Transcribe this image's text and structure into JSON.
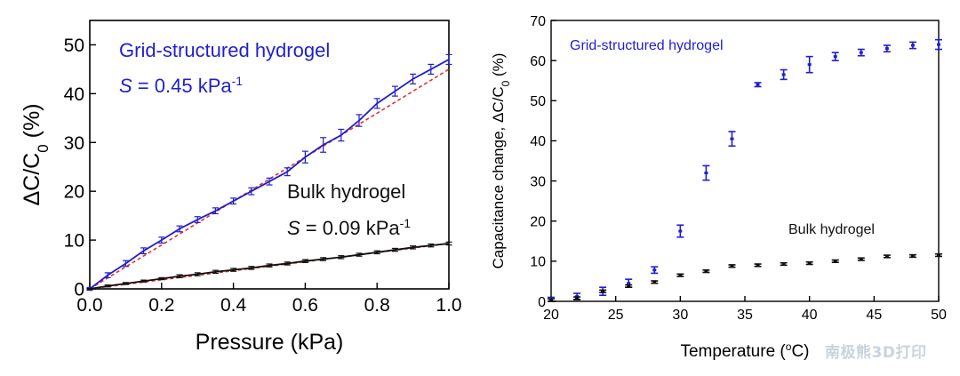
{
  "watermark": "南极熊3D打印",
  "chart_data": [
    {
      "type": "line",
      "xlabel": "Pressure (kPa)",
      "ylabel_parts": {
        "prefix": "ΔC/C",
        "sub": "0",
        "suffix": " (%)"
      },
      "xlim": [
        0.0,
        1.0
      ],
      "ylim": [
        0,
        55
      ],
      "xticks": [
        0.0,
        0.2,
        0.4,
        0.6,
        0.8,
        1.0
      ],
      "xtick_labels": [
        "0.0",
        "0.2",
        "0.4",
        "0.6",
        "0.8",
        "1.0"
      ],
      "yticks": [
        0,
        10,
        20,
        30,
        40,
        50
      ],
      "ytick_labels": [
        "0",
        "10",
        "20",
        "30",
        "40",
        "50"
      ],
      "annotations": [
        {
          "name": "grid-label",
          "text": "Grid-structured hydrogel",
          "color": "#1f1fd0"
        },
        {
          "name": "grid-sensitivity",
          "italic": "S",
          "text": " = 0.45 kPa",
          "sup": "-1",
          "color": "#1f1fd0"
        },
        {
          "name": "bulk-label",
          "text": "Bulk hydrogel",
          "color": "#111111"
        },
        {
          "name": "bulk-sensitivity",
          "italic": "S",
          "text": " = 0.09 kPa",
          "sup": "-1",
          "color": "#111111"
        }
      ],
      "series": [
        {
          "color": "#1f1fd0",
          "x": [
            0.0,
            0.05,
            0.1,
            0.15,
            0.2,
            0.25,
            0.3,
            0.35,
            0.4,
            0.45,
            0.5,
            0.55,
            0.6,
            0.65,
            0.7,
            0.75,
            0.8,
            0.85,
            0.9,
            0.95,
            1.0
          ],
          "y": [
            0,
            2.8,
            5.2,
            7.8,
            10.0,
            12.3,
            14.2,
            16.0,
            18.0,
            20.0,
            22.0,
            24.0,
            27.0,
            29.5,
            31.5,
            34.5,
            38.0,
            40.5,
            43.0,
            45.0,
            47.0
          ],
          "err": [
            0.3,
            0.5,
            0.6,
            0.6,
            0.6,
            0.6,
            0.6,
            0.6,
            0.6,
            0.7,
            0.7,
            0.8,
            1.2,
            1.5,
            1.2,
            1.2,
            1.0,
            1.0,
            1.0,
            1.0,
            1.0
          ]
        },
        {
          "color": "#111111",
          "x": [
            0.0,
            0.05,
            0.1,
            0.15,
            0.2,
            0.25,
            0.3,
            0.35,
            0.4,
            0.45,
            0.5,
            0.55,
            0.6,
            0.65,
            0.7,
            0.75,
            0.8,
            0.85,
            0.9,
            0.95,
            1.0
          ],
          "y": [
            0,
            0.6,
            1.1,
            1.6,
            2.1,
            2.6,
            3.0,
            3.5,
            3.9,
            4.3,
            4.8,
            5.2,
            5.7,
            6.1,
            6.5,
            7.0,
            7.5,
            8.0,
            8.5,
            8.9,
            9.3
          ],
          "err": [
            0.1,
            0.2,
            0.2,
            0.2,
            0.2,
            0.3,
            0.3,
            0.3,
            0.3,
            0.3,
            0.3,
            0.3,
            0.3,
            0.3,
            0.3,
            0.3,
            0.3,
            0.3,
            0.3,
            0.3,
            0.3
          ]
        }
      ],
      "fits": [
        {
          "color": "#e53030",
          "style": "dashed",
          "slope": 45.0,
          "intercept": 0
        },
        {
          "color": "#e53030",
          "style": "dashed",
          "slope": 9.3,
          "intercept": 0
        }
      ]
    },
    {
      "type": "scatter",
      "xlabel_parts": {
        "prefix": "Temperature (",
        "sup": "o",
        "suffix": "C)"
      },
      "ylabel_parts": {
        "prefix": "Capacitance change, ΔC/C",
        "sub": "0",
        "suffix": " (%)"
      },
      "xlim": [
        20,
        50
      ],
      "ylim": [
        0,
        70
      ],
      "xticks": [
        20,
        25,
        30,
        35,
        40,
        45,
        50
      ],
      "xtick_labels": [
        "20",
        "25",
        "30",
        "35",
        "40",
        "45",
        "50"
      ],
      "yticks": [
        0,
        10,
        20,
        30,
        40,
        50,
        60,
        70
      ],
      "ytick_labels": [
        "0",
        "10",
        "20",
        "30",
        "40",
        "50",
        "60",
        "70"
      ],
      "annotations": [
        {
          "name": "grid-label",
          "text": "Grid-structured hydrogel",
          "color": "#1f1fd0"
        },
        {
          "name": "bulk-label",
          "text": "Bulk hydrogel",
          "color": "#111111"
        }
      ],
      "series": [
        {
          "color": "#1f1fd0",
          "x": [
            20,
            22,
            24,
            26,
            28,
            30,
            32,
            34,
            36,
            38,
            40,
            42,
            44,
            46,
            48,
            50
          ],
          "y": [
            0.5,
            1.2,
            2.5,
            4.5,
            7.8,
            17.5,
            32.0,
            40.5,
            54.0,
            56.5,
            59.0,
            61.0,
            62.0,
            63.0,
            63.8,
            64.0
          ],
          "err": [
            0.5,
            0.8,
            1.0,
            1.0,
            0.8,
            1.5,
            1.8,
            1.8,
            0.5,
            1.2,
            2.0,
            1.0,
            0.8,
            0.8,
            0.8,
            1.2
          ]
        },
        {
          "color": "#111111",
          "x": [
            20,
            22,
            24,
            26,
            28,
            30,
            32,
            34,
            36,
            38,
            40,
            42,
            44,
            46,
            48,
            50
          ],
          "y": [
            0.3,
            0.8,
            2.5,
            3.8,
            4.8,
            6.5,
            7.5,
            8.8,
            9.0,
            9.3,
            9.5,
            10.0,
            10.5,
            11.2,
            11.3,
            11.5
          ],
          "err": [
            0.3,
            0.3,
            0.3,
            0.3,
            0.3,
            0.3,
            0.3,
            0.3,
            0.3,
            0.3,
            0.3,
            0.3,
            0.3,
            0.3,
            0.3,
            0.3
          ]
        }
      ]
    }
  ]
}
